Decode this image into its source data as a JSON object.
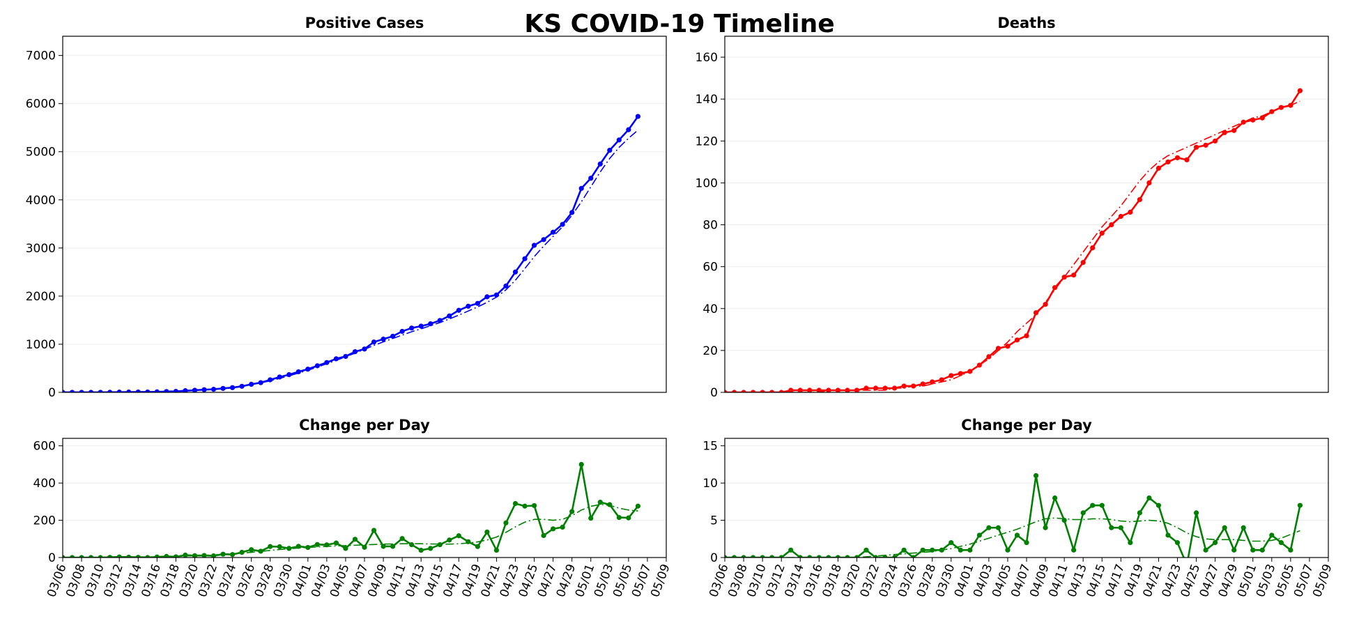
{
  "title": "KS COVID-19 Timeline",
  "chart_data": [
    {
      "type": "line",
      "title": "Positive Cases",
      "x": [
        "03/06",
        "03/07",
        "03/08",
        "03/09",
        "03/10",
        "03/11",
        "03/12",
        "03/13",
        "03/14",
        "03/15",
        "03/16",
        "03/17",
        "03/18",
        "03/19",
        "03/20",
        "03/21",
        "03/22",
        "03/23",
        "03/24",
        "03/25",
        "03/26",
        "03/27",
        "03/28",
        "03/29",
        "03/30",
        "03/31",
        "04/01",
        "04/02",
        "04/03",
        "04/04",
        "04/05",
        "04/06",
        "04/07",
        "04/08",
        "04/09",
        "04/10",
        "04/11",
        "04/12",
        "04/13",
        "04/14",
        "04/15",
        "04/16",
        "04/17",
        "04/18",
        "04/19",
        "04/20",
        "04/21",
        "04/22",
        "04/23",
        "04/24",
        "04/25",
        "04/26",
        "04/27",
        "04/28",
        "04/29",
        "04/30",
        "05/01",
        "05/02",
        "05/03",
        "05/04",
        "05/05",
        "05/06"
      ],
      "xlim": [
        "03/06",
        "05/09"
      ],
      "ylim": [
        0,
        7400
      ],
      "yticks": [
        0,
        1000,
        2000,
        3000,
        4000,
        5000,
        6000,
        7000
      ],
      "grid": true,
      "series": [
        {
          "color": "#0000ff",
          "marker": true,
          "linestyle": "solid",
          "values": [
            1,
            1,
            1,
            1,
            1,
            2,
            5,
            7,
            8,
            8,
            11,
            17,
            21,
            34,
            44,
            55,
            64,
            82,
            98,
            126,
            168,
            202,
            261,
            319,
            368,
            428,
            482,
            552,
            620,
            698,
            747,
            845,
            900,
            1046,
            1106,
            1166,
            1268,
            1337,
            1376,
            1425,
            1494,
            1588,
            1705,
            1790,
            1849,
            1986,
            2025,
            2211,
            2501,
            2777,
            3056,
            3174,
            3328,
            3491,
            3738,
            4238,
            4449,
            4746,
            5030,
            5245,
            5458,
            5734
          ]
        },
        {
          "color": "#0000ff",
          "marker": false,
          "linestyle": "dashdot",
          "values": [
            0,
            0,
            0,
            1,
            2,
            3,
            5,
            7,
            9,
            11,
            14,
            18,
            24,
            32,
            42,
            54,
            68,
            85,
            105,
            130,
            160,
            195,
            240,
            290,
            345,
            400,
            460,
            525,
            595,
            665,
            740,
            815,
            895,
            975,
            1050,
            1120,
            1190,
            1260,
            1320,
            1385,
            1450,
            1525,
            1605,
            1690,
            1775,
            1870,
            1980,
            2130,
            2330,
            2570,
            2820,
            3040,
            3240,
            3440,
            3680,
            3960,
            4270,
            4580,
            4860,
            5090,
            5280,
            5450
          ]
        }
      ]
    },
    {
      "type": "line",
      "title": "Deaths",
      "x": [
        "03/06",
        "03/07",
        "03/08",
        "03/09",
        "03/10",
        "03/11",
        "03/12",
        "03/13",
        "03/14",
        "03/15",
        "03/16",
        "03/17",
        "03/18",
        "03/19",
        "03/20",
        "03/21",
        "03/22",
        "03/23",
        "03/24",
        "03/25",
        "03/26",
        "03/27",
        "03/28",
        "03/29",
        "03/30",
        "03/31",
        "04/01",
        "04/02",
        "04/03",
        "04/04",
        "04/05",
        "04/06",
        "04/07",
        "04/08",
        "04/09",
        "04/10",
        "04/11",
        "04/12",
        "04/13",
        "04/14",
        "04/15",
        "04/16",
        "04/17",
        "04/18",
        "04/19",
        "04/20",
        "04/21",
        "04/22",
        "04/23",
        "04/24",
        "04/25",
        "04/26",
        "04/27",
        "04/28",
        "04/29",
        "04/30",
        "05/01",
        "05/02",
        "05/03",
        "05/04",
        "05/05",
        "05/06"
      ],
      "xlim": [
        "03/06",
        "05/09"
      ],
      "ylim": [
        0,
        170
      ],
      "yticks": [
        0,
        20,
        40,
        60,
        80,
        100,
        120,
        140,
        160
      ],
      "grid": true,
      "series": [
        {
          "color": "#ff0000",
          "marker": true,
          "linestyle": "solid",
          "values": [
            0,
            0,
            0,
            0,
            0,
            0,
            0,
            1,
            1,
            1,
            1,
            1,
            1,
            1,
            1,
            2,
            2,
            2,
            2,
            3,
            3,
            4,
            5,
            6,
            8,
            9,
            10,
            13,
            17,
            21,
            22,
            25,
            27,
            38,
            42,
            50,
            55,
            56,
            62,
            69,
            76,
            80,
            84,
            86,
            92,
            100,
            107,
            110,
            112,
            111,
            117,
            118,
            120,
            124,
            125,
            129,
            130,
            131,
            134,
            136,
            137,
            144
          ]
        },
        {
          "color": "#ff0000",
          "marker": false,
          "linestyle": "dashdot",
          "values": [
            0,
            0,
            0,
            0,
            0,
            0,
            0,
            0,
            0,
            0,
            0,
            1,
            1,
            1,
            1,
            1,
            1,
            1,
            2,
            2,
            3,
            3,
            4,
            5,
            6,
            8,
            10,
            13,
            16,
            20,
            24,
            29,
            33,
            37,
            43,
            49,
            55,
            61,
            67,
            73,
            79,
            84,
            89,
            95,
            101,
            106,
            110,
            113,
            115,
            117,
            119,
            121,
            123,
            125,
            127,
            129,
            131,
            132,
            134,
            136,
            137,
            139
          ]
        }
      ]
    },
    {
      "type": "line",
      "title": "Change per Day",
      "x": [
        "03/06",
        "03/07",
        "03/08",
        "03/09",
        "03/10",
        "03/11",
        "03/12",
        "03/13",
        "03/14",
        "03/15",
        "03/16",
        "03/17",
        "03/18",
        "03/19",
        "03/20",
        "03/21",
        "03/22",
        "03/23",
        "03/24",
        "03/25",
        "03/26",
        "03/27",
        "03/28",
        "03/29",
        "03/30",
        "03/31",
        "04/01",
        "04/02",
        "04/03",
        "04/04",
        "04/05",
        "04/06",
        "04/07",
        "04/08",
        "04/09",
        "04/10",
        "04/11",
        "04/12",
        "04/13",
        "04/14",
        "04/15",
        "04/16",
        "04/17",
        "04/18",
        "04/19",
        "04/20",
        "04/21",
        "04/22",
        "04/23",
        "04/24",
        "04/25",
        "04/26",
        "04/27",
        "04/28",
        "04/29",
        "04/30",
        "05/01",
        "05/02",
        "05/03",
        "05/04",
        "05/05",
        "05/06"
      ],
      "xlim": [
        "03/06",
        "05/09"
      ],
      "xticks": [
        "03/06",
        "03/08",
        "03/10",
        "03/12",
        "03/14",
        "03/16",
        "03/18",
        "03/20",
        "03/22",
        "03/24",
        "03/26",
        "03/28",
        "03/30",
        "04/01",
        "04/03",
        "04/05",
        "04/07",
        "04/09",
        "04/11",
        "04/13",
        "04/15",
        "04/17",
        "04/19",
        "04/21",
        "04/23",
        "04/25",
        "04/27",
        "04/29",
        "05/01",
        "05/03",
        "05/05",
        "05/07",
        "05/09"
      ],
      "ylim": [
        0,
        640
      ],
      "yticks": [
        0,
        200,
        400,
        600
      ],
      "grid": true,
      "series": [
        {
          "color": "#008000",
          "marker": true,
          "linestyle": "solid",
          "values": [
            0,
            0,
            0,
            0,
            0,
            1,
            3,
            2,
            1,
            0,
            3,
            6,
            4,
            13,
            10,
            11,
            9,
            18,
            16,
            28,
            42,
            34,
            59,
            58,
            49,
            60,
            54,
            70,
            68,
            78,
            49,
            98,
            55,
            146,
            60,
            60,
            102,
            69,
            39,
            49,
            69,
            94,
            117,
            85,
            59,
            137,
            39,
            186,
            290,
            276,
            279,
            118,
            154,
            163,
            247,
            500,
            211,
            297,
            284,
            215,
            213,
            276
          ]
        },
        {
          "color": "#008000",
          "marker": false,
          "linestyle": "dashdot",
          "values": [
            0,
            0,
            0,
            0,
            1,
            1,
            2,
            2,
            3,
            3,
            4,
            5,
            6,
            8,
            10,
            12,
            14,
            17,
            20,
            24,
            28,
            33,
            38,
            43,
            47,
            51,
            54,
            57,
            60,
            62,
            64,
            66,
            68,
            70,
            72,
            73,
            74,
            74,
            74,
            73,
            72,
            72,
            74,
            78,
            84,
            94,
            110,
            135,
            165,
            190,
            205,
            205,
            200,
            205,
            225,
            255,
            275,
            285,
            280,
            265,
            255,
            250
          ]
        }
      ]
    },
    {
      "type": "line",
      "title": "Change per Day",
      "x": [
        "03/06",
        "03/07",
        "03/08",
        "03/09",
        "03/10",
        "03/11",
        "03/12",
        "03/13",
        "03/14",
        "03/15",
        "03/16",
        "03/17",
        "03/18",
        "03/19",
        "03/20",
        "03/21",
        "03/22",
        "03/23",
        "03/24",
        "03/25",
        "03/26",
        "03/27",
        "03/28",
        "03/29",
        "03/30",
        "03/31",
        "04/01",
        "04/02",
        "04/03",
        "04/04",
        "04/05",
        "04/06",
        "04/07",
        "04/08",
        "04/09",
        "04/10",
        "04/11",
        "04/12",
        "04/13",
        "04/14",
        "04/15",
        "04/16",
        "04/17",
        "04/18",
        "04/19",
        "04/20",
        "04/21",
        "04/22",
        "04/23",
        "04/24",
        "04/25",
        "04/26",
        "04/27",
        "04/28",
        "04/29",
        "04/30",
        "05/01",
        "05/02",
        "05/03",
        "05/04",
        "05/05",
        "05/06"
      ],
      "xlim": [
        "03/06",
        "05/09"
      ],
      "xticks": [
        "03/06",
        "03/08",
        "03/10",
        "03/12",
        "03/14",
        "03/16",
        "03/18",
        "03/20",
        "03/22",
        "03/24",
        "03/26",
        "03/28",
        "03/30",
        "04/01",
        "04/03",
        "04/05",
        "04/07",
        "04/09",
        "04/11",
        "04/13",
        "04/15",
        "04/17",
        "04/19",
        "04/21",
        "04/23",
        "04/25",
        "04/27",
        "04/29",
        "05/01",
        "05/03",
        "05/05",
        "05/07",
        "05/09"
      ],
      "ylim": [
        0,
        16
      ],
      "yticks": [
        0,
        5,
        10,
        15
      ],
      "grid": true,
      "series": [
        {
          "color": "#008000",
          "marker": true,
          "linestyle": "solid",
          "values": [
            0,
            0,
            0,
            0,
            0,
            0,
            0,
            1,
            0,
            0,
            0,
            0,
            0,
            0,
            0,
            1,
            0,
            0,
            0,
            1,
            0,
            1,
            1,
            1,
            2,
            1,
            1,
            3,
            4,
            4,
            1,
            3,
            2,
            11,
            4,
            8,
            5,
            1,
            6,
            7,
            7,
            4,
            4,
            2,
            6,
            8,
            7,
            3,
            2,
            -1,
            6,
            1,
            2,
            4,
            1,
            4,
            1,
            1,
            3,
            2,
            1,
            7
          ]
        },
        {
          "color": "#008000",
          "marker": false,
          "linestyle": "dashdot",
          "values": [
            0,
            0,
            0,
            0,
            0,
            0,
            0,
            0,
            0,
            0,
            0,
            0,
            0,
            0,
            0,
            0.1,
            0.2,
            0.3,
            0.4,
            0.5,
            0.6,
            0.7,
            0.8,
            1,
            1.2,
            1.5,
            1.8,
            2.2,
            2.6,
            3,
            3.4,
            3.8,
            4.3,
            4.8,
            5.2,
            5.3,
            5.2,
            5.1,
            5.1,
            5.2,
            5.2,
            5.1,
            4.9,
            4.8,
            4.9,
            5,
            4.9,
            4.6,
            4,
            3.3,
            2.8,
            2.5,
            2.4,
            2.4,
            2.4,
            2.3,
            2.2,
            2.2,
            2.3,
            2.6,
            3.1,
            3.6
          ]
        }
      ]
    }
  ]
}
